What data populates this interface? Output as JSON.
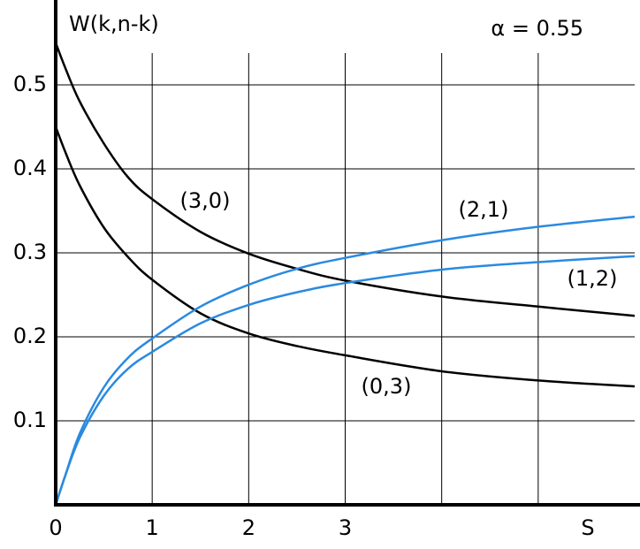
{
  "chart_data": {
    "type": "line",
    "title": "W(k,n-k)",
    "annotation": "α = 0.55",
    "x_label": "S",
    "x": [
      0,
      0.1,
      0.25,
      0.5,
      0.75,
      1,
      1.5,
      2,
      2.5,
      3,
      4,
      5,
      6
    ],
    "series": [
      {
        "name": "(3,0)",
        "color": "#000000",
        "values": [
          0.55,
          0.52,
          0.48,
          0.43,
          0.39,
          0.364,
          0.325,
          0.299,
          0.281,
          0.267,
          0.248,
          0.236,
          0.225
        ]
      },
      {
        "name": "(0,3)",
        "color": "#000000",
        "values": [
          0.45,
          0.42,
          0.38,
          0.33,
          0.295,
          0.268,
          0.228,
          0.204,
          0.189,
          0.178,
          0.159,
          0.148,
          0.141
        ]
      },
      {
        "name": "(2,1)",
        "color": "#2a8ae0",
        "values": [
          0,
          0.035,
          0.085,
          0.14,
          0.175,
          0.198,
          0.236,
          0.262,
          0.281,
          0.294,
          0.315,
          0.331,
          0.343
        ]
      },
      {
        "name": "(1,2)",
        "color": "#2a8ae0",
        "values": [
          0,
          0.035,
          0.08,
          0.13,
          0.162,
          0.182,
          0.216,
          0.238,
          0.253,
          0.264,
          0.28,
          0.289,
          0.296
        ]
      }
    ],
    "xlim": [
      0,
      6
    ],
    "ylim": [
      0,
      0.6
    ],
    "xticks": [
      0,
      1,
      2,
      3
    ],
    "xgrid": [
      4,
      5
    ],
    "yticks": [
      0.1,
      0.2,
      0.3,
      0.4,
      0.5
    ],
    "grid": true
  }
}
